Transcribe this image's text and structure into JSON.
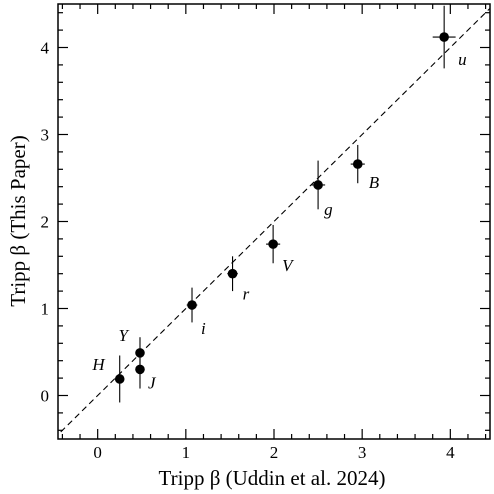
{
  "chart_data": {
    "type": "scatter",
    "title": "",
    "xlabel": "Tripp β (Uddin et al. 2024)",
    "ylabel": "Tripp β (This Paper)",
    "xlim": [
      -0.45,
      4.45
    ],
    "ylim": [
      -0.5,
      4.5
    ],
    "xticks": [
      0,
      1,
      2,
      3,
      4
    ],
    "yticks": [
      0,
      1,
      2,
      3,
      4
    ],
    "grid": false,
    "reference_line": {
      "style": "dashed",
      "relation": "y = x"
    },
    "points": [
      {
        "label": "u",
        "x": 3.93,
        "xerr": 0.13,
        "y": 4.12,
        "yerr": 0.36
      },
      {
        "label": "B",
        "x": 2.95,
        "xerr": 0.08,
        "y": 2.66,
        "yerr": 0.22
      },
      {
        "label": "g",
        "x": 2.5,
        "xerr": 0.08,
        "y": 2.42,
        "yerr": 0.28
      },
      {
        "label": "V",
        "x": 1.99,
        "xerr": 0.08,
        "y": 1.74,
        "yerr": 0.22
      },
      {
        "label": "r",
        "x": 1.53,
        "xerr": 0.06,
        "y": 1.4,
        "yerr": 0.2
      },
      {
        "label": "i",
        "x": 1.07,
        "xerr": 0.06,
        "y": 1.04,
        "yerr": 0.2
      },
      {
        "label": "Y",
        "x": 0.48,
        "xerr": 0.05,
        "y": 0.49,
        "yerr": 0.18
      },
      {
        "label": "J",
        "x": 0.48,
        "xerr": 0.05,
        "y": 0.3,
        "yerr": 0.22
      },
      {
        "label": "H",
        "x": 0.25,
        "xerr": 0.05,
        "y": 0.19,
        "yerr": 0.27
      }
    ]
  }
}
